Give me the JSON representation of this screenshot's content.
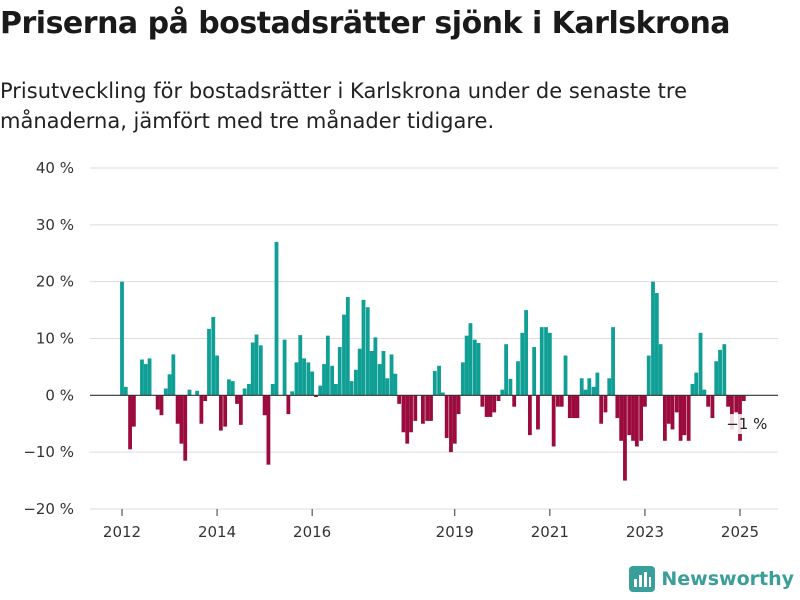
{
  "header": {
    "title": "Priserna på bostadsrätter sjönk i Karlskrona",
    "subtitle": "Prisutveckling för bostadsrätter i Karlskrona under de senaste tre månaderna, jämfört med tre månader tidigare."
  },
  "brand": {
    "name": "Newsworthy",
    "color": "#3a9e9a",
    "icon": "bar-chart-logo-icon"
  },
  "colors": {
    "positive": "#0f9f95",
    "negative": "#9b0b3d",
    "grid": "#dddddd",
    "axis": "#333333"
  },
  "chart_data": {
    "type": "bar",
    "title": "Priserna på bostadsrätter sjönk i Karlskrona",
    "subtitle": "Prisutveckling för bostadsrätter i Karlskrona under de senaste tre månaderna, jämfört med tre månader tidigare.",
    "ylim": [
      -20,
      40
    ],
    "y_ticks": [
      -20,
      -10,
      0,
      10,
      20,
      30,
      40
    ],
    "y_tick_labels": [
      "−20 %",
      "−10 %",
      "0 %",
      "10 %",
      "20 %",
      "30 %",
      "40 %"
    ],
    "x_ticks": [
      2012,
      2014,
      2016,
      2019,
      2021,
      2023,
      2025
    ],
    "x_tick_labels": [
      "2012",
      "2014",
      "2016",
      "2019",
      "2021",
      "2023",
      "2025"
    ],
    "grid": true,
    "last_value_label": "−1 %",
    "series": [
      {
        "values": [
          {
            "x": 2012.0,
            "y": 20
          },
          {
            "x": 2012.08,
            "y": 1.5
          },
          {
            "x": 2012.17,
            "y": -9.5
          },
          {
            "x": 2012.25,
            "y": -5.5
          },
          {
            "x": 2012.42,
            "y": 6.3
          },
          {
            "x": 2012.5,
            "y": 5.5
          },
          {
            "x": 2012.58,
            "y": 6.5
          },
          {
            "x": 2012.75,
            "y": -2.5
          },
          {
            "x": 2012.83,
            "y": -3.5
          },
          {
            "x": 2012.92,
            "y": 1.2
          },
          {
            "x": 2013.0,
            "y": 3.7
          },
          {
            "x": 2013.08,
            "y": 7.2
          },
          {
            "x": 2013.17,
            "y": -5
          },
          {
            "x": 2013.25,
            "y": -8.5
          },
          {
            "x": 2013.33,
            "y": -11.5
          },
          {
            "x": 2013.42,
            "y": 1
          },
          {
            "x": 2013.58,
            "y": 0.8
          },
          {
            "x": 2013.67,
            "y": -5
          },
          {
            "x": 2013.75,
            "y": -1
          },
          {
            "x": 2013.83,
            "y": 11.7
          },
          {
            "x": 2013.92,
            "y": 13.8
          },
          {
            "x": 2014.0,
            "y": 7
          },
          {
            "x": 2014.08,
            "y": -6.2
          },
          {
            "x": 2014.17,
            "y": -5.5
          },
          {
            "x": 2014.25,
            "y": 2.8
          },
          {
            "x": 2014.33,
            "y": 2.5
          },
          {
            "x": 2014.42,
            "y": -1.5
          },
          {
            "x": 2014.5,
            "y": -5.2
          },
          {
            "x": 2014.58,
            "y": 1.2
          },
          {
            "x": 2014.67,
            "y": 2
          },
          {
            "x": 2014.75,
            "y": 9.3
          },
          {
            "x": 2014.83,
            "y": 10.7
          },
          {
            "x": 2014.92,
            "y": 8.8
          },
          {
            "x": 2015.0,
            "y": -3.5
          },
          {
            "x": 2015.08,
            "y": -12.2
          },
          {
            "x": 2015.17,
            "y": 2
          },
          {
            "x": 2015.25,
            "y": 27
          },
          {
            "x": 2015.42,
            "y": 9.8
          },
          {
            "x": 2015.5,
            "y": -3.3
          },
          {
            "x": 2015.58,
            "y": 0.7
          },
          {
            "x": 2015.67,
            "y": 5.8
          },
          {
            "x": 2015.75,
            "y": 10.6
          },
          {
            "x": 2015.83,
            "y": 6.5
          },
          {
            "x": 2015.92,
            "y": 5.8
          },
          {
            "x": 2016.0,
            "y": 4.2
          },
          {
            "x": 2016.08,
            "y": -0.3
          },
          {
            "x": 2016.17,
            "y": 1.7
          },
          {
            "x": 2016.25,
            "y": 5.5
          },
          {
            "x": 2016.33,
            "y": 10.5
          },
          {
            "x": 2016.42,
            "y": 5.2
          },
          {
            "x": 2016.5,
            "y": 2
          },
          {
            "x": 2016.58,
            "y": 8.5
          },
          {
            "x": 2016.67,
            "y": 14.2
          },
          {
            "x": 2016.75,
            "y": 17.3
          },
          {
            "x": 2016.83,
            "y": 2.5
          },
          {
            "x": 2016.92,
            "y": 4.5
          },
          {
            "x": 2017.0,
            "y": 8.2
          },
          {
            "x": 2017.08,
            "y": 16.8
          },
          {
            "x": 2017.17,
            "y": 15.5
          },
          {
            "x": 2017.25,
            "y": 7.8
          },
          {
            "x": 2017.33,
            "y": 10.2
          },
          {
            "x": 2017.42,
            "y": 5.5
          },
          {
            "x": 2017.5,
            "y": 7.8
          },
          {
            "x": 2017.58,
            "y": 3
          },
          {
            "x": 2017.67,
            "y": 7.2
          },
          {
            "x": 2017.75,
            "y": 3.8
          },
          {
            "x": 2017.83,
            "y": -1.5
          },
          {
            "x": 2017.92,
            "y": -6.5
          },
          {
            "x": 2018.0,
            "y": -8.5
          },
          {
            "x": 2018.08,
            "y": -6.5
          },
          {
            "x": 2018.17,
            "y": -4.5
          },
          {
            "x": 2018.33,
            "y": -5
          },
          {
            "x": 2018.42,
            "y": -4.5
          },
          {
            "x": 2018.5,
            "y": -4.5
          },
          {
            "x": 2018.58,
            "y": 4.3
          },
          {
            "x": 2018.67,
            "y": 5.2
          },
          {
            "x": 2018.75,
            "y": 0.5
          },
          {
            "x": 2018.83,
            "y": -7.5
          },
          {
            "x": 2018.92,
            "y": -10
          },
          {
            "x": 2019.0,
            "y": -8.5
          },
          {
            "x": 2019.08,
            "y": -3.3
          },
          {
            "x": 2019.17,
            "y": 5.8
          },
          {
            "x": 2019.25,
            "y": 10.5
          },
          {
            "x": 2019.33,
            "y": 12.7
          },
          {
            "x": 2019.42,
            "y": 9.8
          },
          {
            "x": 2019.5,
            "y": 9.2
          },
          {
            "x": 2019.58,
            "y": -2
          },
          {
            "x": 2019.67,
            "y": -3.8
          },
          {
            "x": 2019.75,
            "y": -3.8
          },
          {
            "x": 2019.83,
            "y": -3
          },
          {
            "x": 2019.92,
            "y": -1
          },
          {
            "x": 2020.0,
            "y": 1
          },
          {
            "x": 2020.08,
            "y": 9
          },
          {
            "x": 2020.17,
            "y": 2.9
          },
          {
            "x": 2020.25,
            "y": -2
          },
          {
            "x": 2020.33,
            "y": 6
          },
          {
            "x": 2020.42,
            "y": 11
          },
          {
            "x": 2020.5,
            "y": 15
          },
          {
            "x": 2020.58,
            "y": -7
          },
          {
            "x": 2020.67,
            "y": 8.5
          },
          {
            "x": 2020.75,
            "y": -6
          },
          {
            "x": 2020.83,
            "y": 12
          },
          {
            "x": 2020.92,
            "y": 12
          },
          {
            "x": 2021.0,
            "y": 11
          },
          {
            "x": 2021.08,
            "y": -9
          },
          {
            "x": 2021.17,
            "y": -2
          },
          {
            "x": 2021.25,
            "y": -2
          },
          {
            "x": 2021.33,
            "y": 7
          },
          {
            "x": 2021.42,
            "y": -4
          },
          {
            "x": 2021.5,
            "y": -4
          },
          {
            "x": 2021.58,
            "y": -4
          },
          {
            "x": 2021.67,
            "y": 3
          },
          {
            "x": 2021.75,
            "y": 1
          },
          {
            "x": 2021.83,
            "y": 3
          },
          {
            "x": 2021.92,
            "y": 1.5
          },
          {
            "x": 2022.0,
            "y": 4
          },
          {
            "x": 2022.08,
            "y": -5
          },
          {
            "x": 2022.17,
            "y": -3
          },
          {
            "x": 2022.25,
            "y": 3
          },
          {
            "x": 2022.33,
            "y": 12
          },
          {
            "x": 2022.42,
            "y": -4
          },
          {
            "x": 2022.5,
            "y": -8
          },
          {
            "x": 2022.58,
            "y": -15
          },
          {
            "x": 2022.67,
            "y": -7
          },
          {
            "x": 2022.75,
            "y": -8
          },
          {
            "x": 2022.83,
            "y": -9
          },
          {
            "x": 2022.92,
            "y": -8
          },
          {
            "x": 2023.0,
            "y": -2
          },
          {
            "x": 2023.08,
            "y": 7
          },
          {
            "x": 2023.17,
            "y": 20
          },
          {
            "x": 2023.25,
            "y": 18
          },
          {
            "x": 2023.33,
            "y": 9
          },
          {
            "x": 2023.42,
            "y": -8
          },
          {
            "x": 2023.5,
            "y": -5
          },
          {
            "x": 2023.58,
            "y": -6
          },
          {
            "x": 2023.67,
            "y": -3
          },
          {
            "x": 2023.75,
            "y": -8
          },
          {
            "x": 2023.83,
            "y": -7
          },
          {
            "x": 2023.92,
            "y": -8
          },
          {
            "x": 2024.0,
            "y": 2
          },
          {
            "x": 2024.08,
            "y": 4
          },
          {
            "x": 2024.17,
            "y": 11
          },
          {
            "x": 2024.25,
            "y": 1
          },
          {
            "x": 2024.33,
            "y": -2
          },
          {
            "x": 2024.42,
            "y": -4
          },
          {
            "x": 2024.5,
            "y": 6
          },
          {
            "x": 2024.58,
            "y": 8
          },
          {
            "x": 2024.67,
            "y": 9
          },
          {
            "x": 2024.75,
            "y": -2
          },
          {
            "x": 2024.83,
            "y": -6
          },
          {
            "x": 2024.92,
            "y": -3
          },
          {
            "x": 2025.0,
            "y": -8
          },
          {
            "x": 2025.08,
            "y": -1
          }
        ]
      }
    ]
  }
}
